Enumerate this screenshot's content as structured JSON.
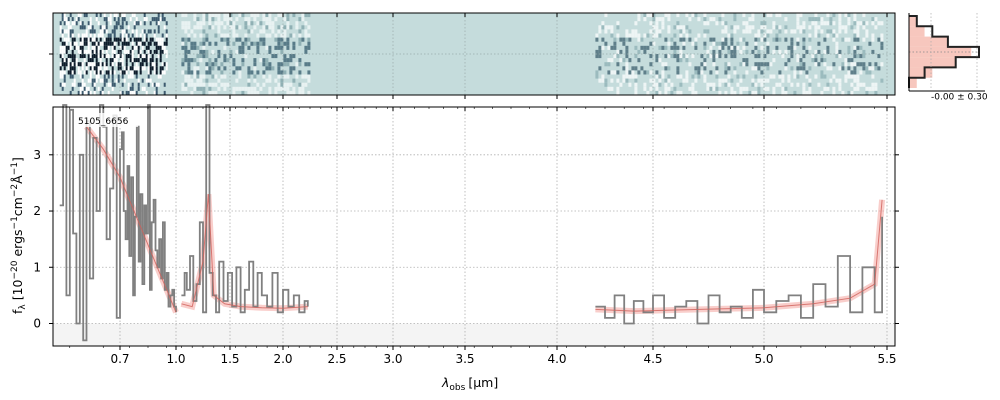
{
  "chart_data": [
    {
      "type": "heatmap",
      "panel": "2d-spectrum",
      "description_values": "2D spectrum image with sky-blue background; dense structure at 0.5-1.0 µm, moderate at 1.0-2.2 µm, gap 2.2-4.2 µm, faint noise 4.2-5.5 µm",
      "x_segments": [
        [
          0.52,
          0.95
        ],
        [
          1.05,
          2.23
        ],
        [
          4.2,
          5.48
        ]
      ],
      "background_color": "#c5dcdc"
    },
    {
      "type": "line",
      "panel": "1d-spectrum",
      "label": "5105_6656",
      "xlabel_main": "λ",
      "xlabel_sub": "obs",
      "xlabel_unit": "[μm]",
      "ylabel": "f_λ [10^{-20} ergs^{-1}cm^{-2}Å^{-1}]",
      "ylabel_parts": {
        "f": "f",
        "lam": "λ",
        "a": " [10",
        "e1": "−20",
        "b": " ergs",
        "e2": "−1",
        "c": "cm",
        "e3": "−2",
        "d": "Å",
        "e4": "−1",
        "e": "]"
      },
      "xticks": [
        0.7,
        1.0,
        1.5,
        2.0,
        2.5,
        3.0,
        3.5,
        4.0,
        4.5,
        5.0,
        5.5
      ],
      "xtick_labels": [
        "0.7",
        "1.0",
        "1.5",
        "2.0",
        "2.5",
        "3.0",
        "3.5",
        "4.0",
        "4.5",
        "5.0",
        "5.5"
      ],
      "yticks": [
        0,
        1,
        2,
        3
      ],
      "ytick_labels": [
        "0",
        "1",
        "2",
        "3"
      ],
      "ylim": [
        -0.4,
        3.85
      ],
      "grid": true,
      "series": [
        {
          "role": "data",
          "color": "#808080",
          "segments": [
            {
              "x": [
                0.52,
                0.53,
                0.54,
                0.55,
                0.56,
                0.57,
                0.58,
                0.59,
                0.6,
                0.61,
                0.62,
                0.63,
                0.64,
                0.65,
                0.66,
                0.67,
                0.68,
                0.69,
                0.7,
                0.71,
                0.72,
                0.73,
                0.74,
                0.75,
                0.76,
                0.77,
                0.78,
                0.79,
                0.8,
                0.81,
                0.82,
                0.83,
                0.84,
                0.85,
                0.86,
                0.87,
                0.88,
                0.89,
                0.9,
                0.91,
                0.92,
                0.93,
                0.94,
                0.95,
                0.96,
                0.97,
                0.98,
                0.99,
                1.0
              ],
              "y": [
                2.1,
                3.9,
                0.5,
                3.8,
                1.6,
                0.0,
                3.0,
                -0.3,
                3.6,
                0.8,
                3.3,
                2.0,
                3.9,
                3.5,
                1.5,
                2.4,
                3.7,
                0.1,
                3.1,
                3.4,
                2.0,
                1.5,
                2.8,
                1.2,
                2.6,
                0.5,
                1.9,
                3.5,
                1.1,
                2.3,
                0.7,
                2.1,
                1.6,
                3.9,
                0.6,
                1.8,
                2.2,
                1.3,
                1.0,
                1.5,
                0.8,
                1.8,
                0.6,
                0.9,
                0.3,
                0.5,
                0.6,
                0.3,
                0.2
              ]
            },
            {
              "x": [
                1.05,
                1.08,
                1.1,
                1.13,
                1.16,
                1.19,
                1.22,
                1.25,
                1.28,
                1.31,
                1.34,
                1.37,
                1.4,
                1.44,
                1.48,
                1.52,
                1.56,
                1.6,
                1.64,
                1.68,
                1.72,
                1.76,
                1.8,
                1.85,
                1.9,
                1.95,
                2.0,
                2.05,
                2.1,
                2.15,
                2.2,
                2.23
              ],
              "y": [
                0.5,
                0.9,
                0.6,
                1.2,
                0.4,
                0.7,
                1.8,
                0.2,
                3.9,
                0.9,
                0.5,
                0.2,
                1.1,
                0.4,
                0.9,
                0.3,
                1.0,
                0.2,
                0.6,
                1.1,
                0.3,
                0.9,
                0.5,
                0.3,
                0.9,
                0.2,
                0.6,
                0.3,
                0.5,
                0.2,
                0.4,
                0.3
              ]
            },
            {
              "x": [
                4.2,
                4.25,
                4.3,
                4.35,
                4.4,
                4.45,
                4.5,
                4.55,
                4.6,
                4.65,
                4.7,
                4.75,
                4.8,
                4.85,
                4.9,
                4.95,
                5.0,
                5.05,
                5.1,
                5.15,
                5.2,
                5.25,
                5.3,
                5.35,
                5.4,
                5.45,
                5.48
              ],
              "y": [
                0.3,
                0.1,
                0.5,
                0.0,
                0.4,
                0.2,
                0.5,
                0.1,
                0.3,
                0.4,
                0.0,
                0.5,
                0.2,
                0.3,
                0.1,
                0.6,
                0.2,
                0.4,
                0.5,
                0.1,
                0.7,
                0.3,
                1.2,
                0.2,
                1.0,
                0.2,
                1.9
              ]
            }
          ]
        },
        {
          "role": "model",
          "color": "#f4a6a0",
          "segments": [
            {
              "x": [
                0.6,
                0.65,
                0.7,
                0.75,
                0.8,
                0.85,
                0.9,
                0.95,
                1.0
              ],
              "y": [
                3.5,
                3.1,
                2.6,
                2.2,
                1.8,
                1.4,
                1.0,
                0.6,
                0.2
              ]
            },
            {
              "x": [
                1.05,
                1.15,
                1.25,
                1.3,
                1.35,
                1.45,
                1.6,
                1.8,
                2.0,
                2.23
              ],
              "y": [
                0.35,
                0.3,
                1.1,
                2.3,
                0.5,
                0.35,
                0.3,
                0.28,
                0.27,
                0.3
              ]
            },
            {
              "x": [
                4.2,
                4.4,
                4.6,
                4.8,
                5.0,
                5.2,
                5.35,
                5.45,
                5.48
              ],
              "y": [
                0.25,
                0.22,
                0.24,
                0.26,
                0.28,
                0.35,
                0.45,
                0.7,
                2.2
              ]
            }
          ]
        }
      ]
    },
    {
      "type": "histogram",
      "panel": "residual-histogram",
      "stat_label": "-0.00 ± 0.30",
      "bins": [
        -0.7,
        -0.5,
        -0.3,
        -0.1,
        0.1,
        0.3,
        0.5
      ],
      "counts_data": [
        1,
        3,
        5,
        9,
        6,
        2,
        0
      ],
      "counts_model": [
        1,
        2,
        5,
        8,
        6,
        3,
        1
      ]
    }
  ]
}
